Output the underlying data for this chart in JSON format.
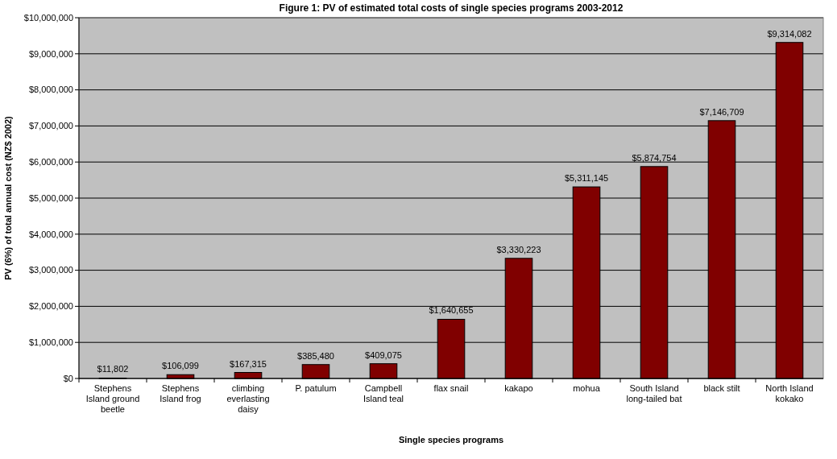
{
  "chart_data": {
    "type": "bar",
    "title": "Figure 1: PV of estimated total costs of single species programs 2003-2012",
    "xlabel": "Single species programs",
    "ylabel": "PV (6%) of total annual cost (NZ$ 2002)",
    "categories": [
      "Stephens Island ground beetle",
      "Stephens Island frog",
      "climbing everlasting daisy",
      "P. patulum",
      "Campbell Island teal",
      "flax snail",
      "kakapo",
      "mohua",
      "South Island long-tailed bat",
      "black stilt",
      "North Island kokako"
    ],
    "values": [
      11802,
      106099,
      167315,
      385480,
      409075,
      1640655,
      3330223,
      5311145,
      5874754,
      7146709,
      9314082
    ],
    "value_labels": [
      "$11,802",
      "$106,099",
      "$167,315",
      "$385,480",
      "$409,075",
      "$1,640,655",
      "$3,330,223",
      "$5,311,145",
      "$5,874,754",
      "$7,146,709",
      "$9,314,082"
    ],
    "color": "#800000",
    "ylim": [
      0,
      10000000
    ],
    "yticks": [
      {
        "value": 0,
        "label": "$0"
      },
      {
        "value": 1000000,
        "label": "$1,000,000"
      },
      {
        "value": 2000000,
        "label": "$2,000,000"
      },
      {
        "value": 3000000,
        "label": "$3,000,000"
      },
      {
        "value": 4000000,
        "label": "$4,000,000"
      },
      {
        "value": 5000000,
        "label": "$5,000,000"
      },
      {
        "value": 6000000,
        "label": "$6,000,000"
      },
      {
        "value": 7000000,
        "label": "$7,000,000"
      },
      {
        "value": 8000000,
        "label": "$8,000,000"
      },
      {
        "value": 9000000,
        "label": "$9,000,000"
      },
      {
        "value": 10000000,
        "label": "$10,000,000"
      }
    ],
    "grid": "y"
  }
}
